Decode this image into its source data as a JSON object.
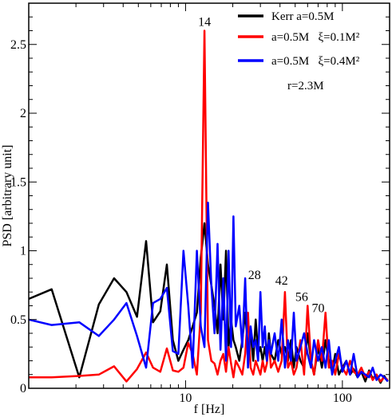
{
  "chart_data": {
    "type": "line",
    "title": "",
    "xlabel": "f [Hz]",
    "ylabel": "PSD [arbitrary unit]",
    "xscale": "log",
    "xlim": [
      1,
      200
    ],
    "ylim": [
      0,
      2.8
    ],
    "x_ticks": [
      {
        "value": 10,
        "label": "10"
      },
      {
        "value": 100,
        "label": "100"
      }
    ],
    "y_ticks": [
      {
        "value": 0,
        "label": "0"
      },
      {
        "value": 0.5,
        "label": "0.5"
      },
      {
        "value": 1,
        "label": "1"
      },
      {
        "value": 1.5,
        "label": "1.5"
      },
      {
        "value": 2,
        "label": "2"
      },
      {
        "value": 2.5,
        "label": "2.5"
      }
    ],
    "grid": false,
    "legend_position": "top-right",
    "series": [
      {
        "name": "Kerr a=0.5M",
        "color": "#000000",
        "x": [
          1,
          1.4,
          2.1,
          2.8,
          3.5,
          4.2,
          4.9,
          5.6,
          6.2,
          6.9,
          7.6,
          8.3,
          9,
          9.7,
          10.4,
          11.1,
          11.8,
          12.5,
          13.2,
          13.9,
          14.6,
          15.3,
          16,
          16.7,
          17.4,
          18.1,
          18.8,
          19.5,
          20.2,
          20.9,
          22,
          23,
          24,
          25,
          26,
          27,
          28,
          29,
          30,
          31,
          32,
          33,
          34,
          35,
          37,
          39,
          41,
          43,
          45,
          47,
          49,
          51,
          54,
          57,
          60,
          63,
          66,
          70,
          74,
          78,
          82,
          86,
          90,
          95,
          100,
          106,
          112,
          118,
          125,
          132,
          140,
          148,
          156,
          165,
          175,
          185,
          195
        ],
        "y": [
          0.65,
          0.72,
          0.08,
          0.61,
          0.8,
          0.7,
          0.52,
          1.07,
          0.48,
          0.56,
          0.9,
          0.35,
          0.2,
          0.28,
          0.35,
          0.45,
          0.55,
          0.95,
          1.2,
          0.9,
          0.75,
          0.6,
          0.4,
          0.9,
          0.5,
          1.0,
          0.3,
          0.5,
          0.35,
          0.3,
          0.2,
          0.35,
          0.55,
          0.3,
          0.4,
          0.2,
          0.5,
          0.25,
          0.3,
          0.2,
          0.3,
          0.2,
          0.4,
          0.25,
          0.2,
          0.35,
          0.25,
          0.3,
          0.2,
          0.35,
          0.15,
          0.3,
          0.2,
          0.15,
          0.4,
          0.2,
          0.1,
          0.3,
          0.15,
          0.35,
          0.2,
          0.12,
          0.25,
          0.1,
          0.15,
          0.2,
          0.1,
          0.14,
          0.08,
          0.12,
          0.05,
          0.13,
          0.07,
          0.1,
          0.04,
          0.09,
          0.05
        ]
      },
      {
        "name": "a=0.5M   ξ=0.1M²",
        "color": "#ff0000",
        "x": [
          1,
          1.4,
          2.1,
          2.8,
          3.5,
          4.2,
          4.9,
          5.6,
          6.2,
          6.9,
          7.6,
          8.3,
          9,
          9.7,
          10.4,
          11.1,
          11.8,
          12.5,
          13.2,
          13.9,
          14.6,
          15.3,
          16,
          16.7,
          17.4,
          18.1,
          18.8,
          19.5,
          20.2,
          20.9,
          22,
          23,
          24,
          25,
          26,
          27,
          28,
          29,
          30,
          31,
          32,
          33,
          34,
          35,
          37,
          39,
          41,
          43,
          45,
          47,
          49,
          51,
          54,
          57,
          60,
          63,
          66,
          70,
          74,
          78,
          82,
          86,
          90,
          95,
          100,
          106,
          112,
          118,
          125,
          132,
          140,
          148,
          156,
          165,
          175,
          185,
          195
        ],
        "y": [
          0.08,
          0.08,
          0.09,
          0.1,
          0.16,
          0.05,
          0.14,
          0.26,
          0.15,
          0.12,
          0.29,
          0.13,
          0.12,
          0.15,
          0.33,
          0.25,
          0.1,
          0.55,
          2.6,
          0.35,
          0.2,
          0.18,
          0.1,
          0.2,
          0.25,
          0.12,
          0.3,
          0.18,
          0.08,
          0.2,
          0.15,
          0.1,
          0.25,
          0.55,
          0.15,
          0.1,
          0.2,
          0.15,
          0.1,
          0.2,
          0.12,
          0.18,
          0.35,
          0.15,
          0.2,
          0.12,
          0.2,
          0.7,
          0.15,
          0.2,
          0.1,
          0.15,
          0.35,
          0.1,
          0.6,
          0.2,
          0.1,
          0.35,
          0.2,
          0.55,
          0.15,
          0.2,
          0.1,
          0.25,
          0.15,
          0.1,
          0.2,
          0.12,
          0.1,
          0.15,
          0.08,
          0.12,
          0.06,
          0.1,
          0.05,
          0.08,
          0.06
        ]
      },
      {
        "name": "a=0.5M   ξ=0.4M²",
        "color": "#0000ff",
        "x": [
          1,
          1.4,
          2.1,
          2.8,
          3.5,
          4.2,
          4.9,
          5.6,
          6.2,
          6.9,
          7.6,
          8.3,
          9,
          9.7,
          10.4,
          11.1,
          11.8,
          12.5,
          13.2,
          13.9,
          14.6,
          15.3,
          16,
          16.7,
          17.4,
          18.1,
          18.8,
          19.5,
          20.2,
          20.9,
          22,
          23,
          24,
          25,
          26,
          27,
          28,
          29,
          30,
          31,
          32,
          33,
          34,
          35,
          37,
          39,
          41,
          43,
          45,
          47,
          49,
          51,
          54,
          57,
          60,
          63,
          66,
          70,
          74,
          78,
          82,
          86,
          90,
          95,
          100,
          106,
          112,
          118,
          125,
          132,
          140,
          148,
          156,
          165,
          175,
          185,
          195
        ],
        "y": [
          0.5,
          0.46,
          0.48,
          0.38,
          0.5,
          0.62,
          0.38,
          0.15,
          0.62,
          0.65,
          0.73,
          0.27,
          0.25,
          1.0,
          0.6,
          0.15,
          1.0,
          0.45,
          0.3,
          1.35,
          0.75,
          0.4,
          1.05,
          0.28,
          0.8,
          0.2,
          1.0,
          0.3,
          1.25,
          0.45,
          0.6,
          0.3,
          0.8,
          0.15,
          0.45,
          0.3,
          0.35,
          0.2,
          0.7,
          0.3,
          0.45,
          0.2,
          0.35,
          0.25,
          0.4,
          0.2,
          0.5,
          0.15,
          0.35,
          0.2,
          0.55,
          0.2,
          0.3,
          0.4,
          0.25,
          0.15,
          0.35,
          0.2,
          0.3,
          0.15,
          0.35,
          0.1,
          0.2,
          0.3,
          0.12,
          0.2,
          0.1,
          0.25,
          0.08,
          0.12,
          0.1,
          0.08,
          0.15,
          0.06,
          0.1,
          0.08,
          0.05
        ]
      }
    ],
    "legend": [
      {
        "label": "Kerr a=0.5M",
        "color": "#000000"
      },
      {
        "label": "a=0.5M   ξ=0.1M²",
        "color": "#ff0000"
      },
      {
        "label": "a=0.5M   ξ=0.4M²",
        "color": "#0000ff"
      }
    ],
    "annotations": [
      {
        "text": "r=2.3M",
        "anchor": "legend"
      },
      {
        "text": "14",
        "x": 13.2,
        "y": 2.6
      },
      {
        "text": "28",
        "x": 27.5,
        "y": 0.76
      },
      {
        "text": "42",
        "x": 41,
        "y": 0.72
      },
      {
        "text": "56",
        "x": 55,
        "y": 0.6
      },
      {
        "text": "70",
        "x": 70,
        "y": 0.52
      }
    ]
  }
}
